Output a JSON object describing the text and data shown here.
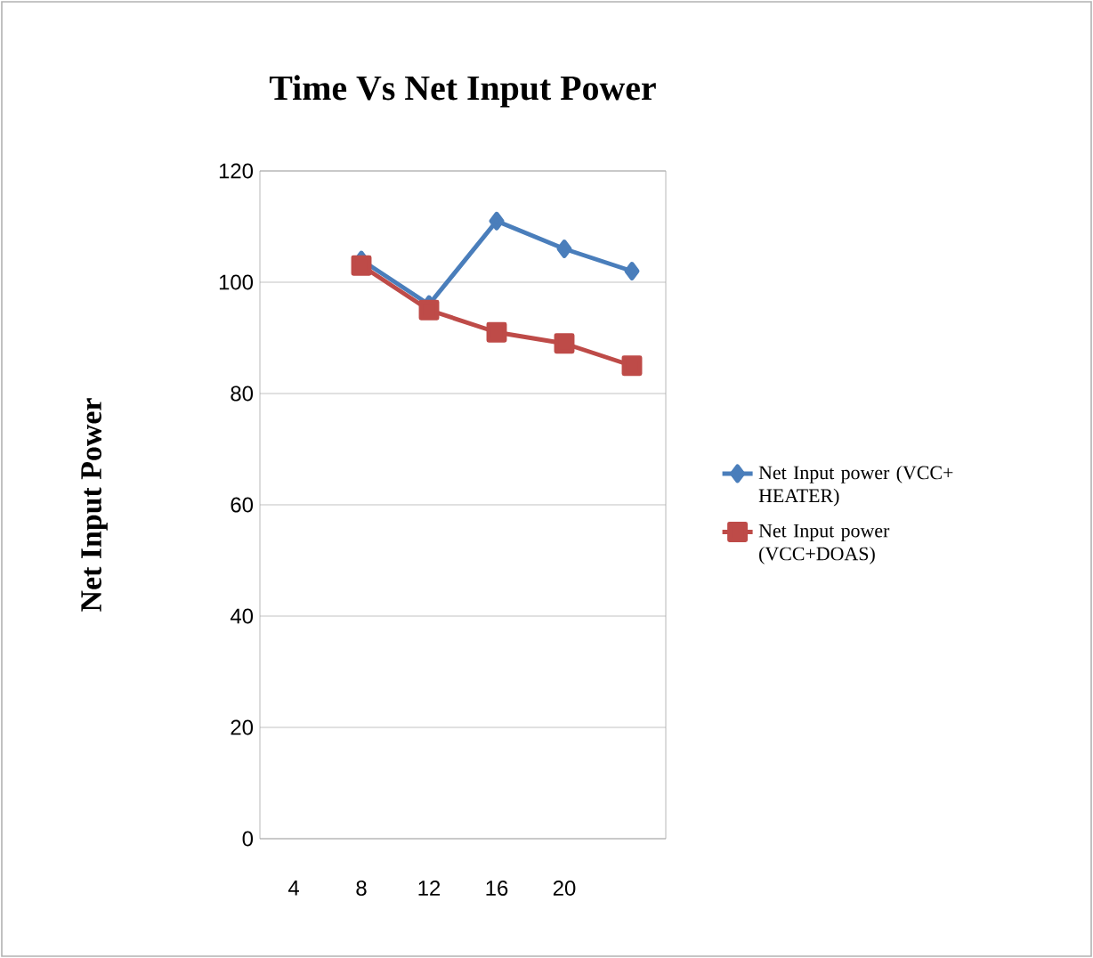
{
  "chart_data": {
    "type": "line",
    "title": "Time Vs Net Input Power",
    "ylabel": "Net Input Power",
    "categories": [
      "4",
      "8",
      "12",
      "16",
      "20",
      null
    ],
    "series": [
      {
        "name": "Net Input power (VCC+ HEATER)",
        "color": "#4a7ebb",
        "marker": "diamond",
        "values": [
          null,
          104,
          96,
          111,
          106,
          102
        ]
      },
      {
        "name": "Net Input power (VCC+DOAS)",
        "color": "#be4b48",
        "marker": "square",
        "values": [
          null,
          103,
          95,
          91,
          89,
          85
        ]
      }
    ],
    "ylim": [
      0,
      120
    ],
    "yticks": [
      0,
      20,
      40,
      60,
      80,
      100,
      120
    ],
    "grid": "y",
    "legend": "right"
  }
}
